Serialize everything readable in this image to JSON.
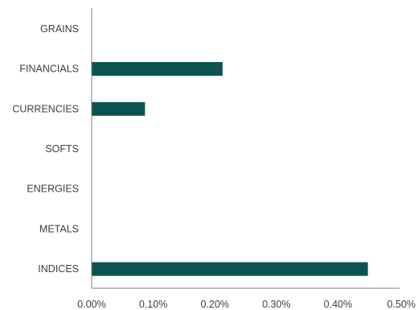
{
  "chart_data": {
    "type": "bar",
    "orientation": "horizontal",
    "categories": [
      "GRAINS",
      "FINANCIALS",
      "CURRENCIES",
      "SOFTS",
      "ENERGIES",
      "METALS",
      "INDICES"
    ],
    "values": [
      0.0,
      0.212,
      0.086,
      0.0,
      0.0,
      0.0,
      0.448
    ],
    "value_unit": "percent",
    "xlim": [
      0.0,
      0.5
    ],
    "xticks": [
      0.0,
      0.1,
      0.2,
      0.3,
      0.4,
      0.5
    ],
    "xtick_labels": [
      "0.00%",
      "0.10%",
      "0.20%",
      "0.30%",
      "0.40%",
      "0.50%"
    ],
    "bar_color": "#0b5351",
    "grid": false,
    "legend": "none",
    "title": "",
    "xlabel": "",
    "ylabel": ""
  }
}
